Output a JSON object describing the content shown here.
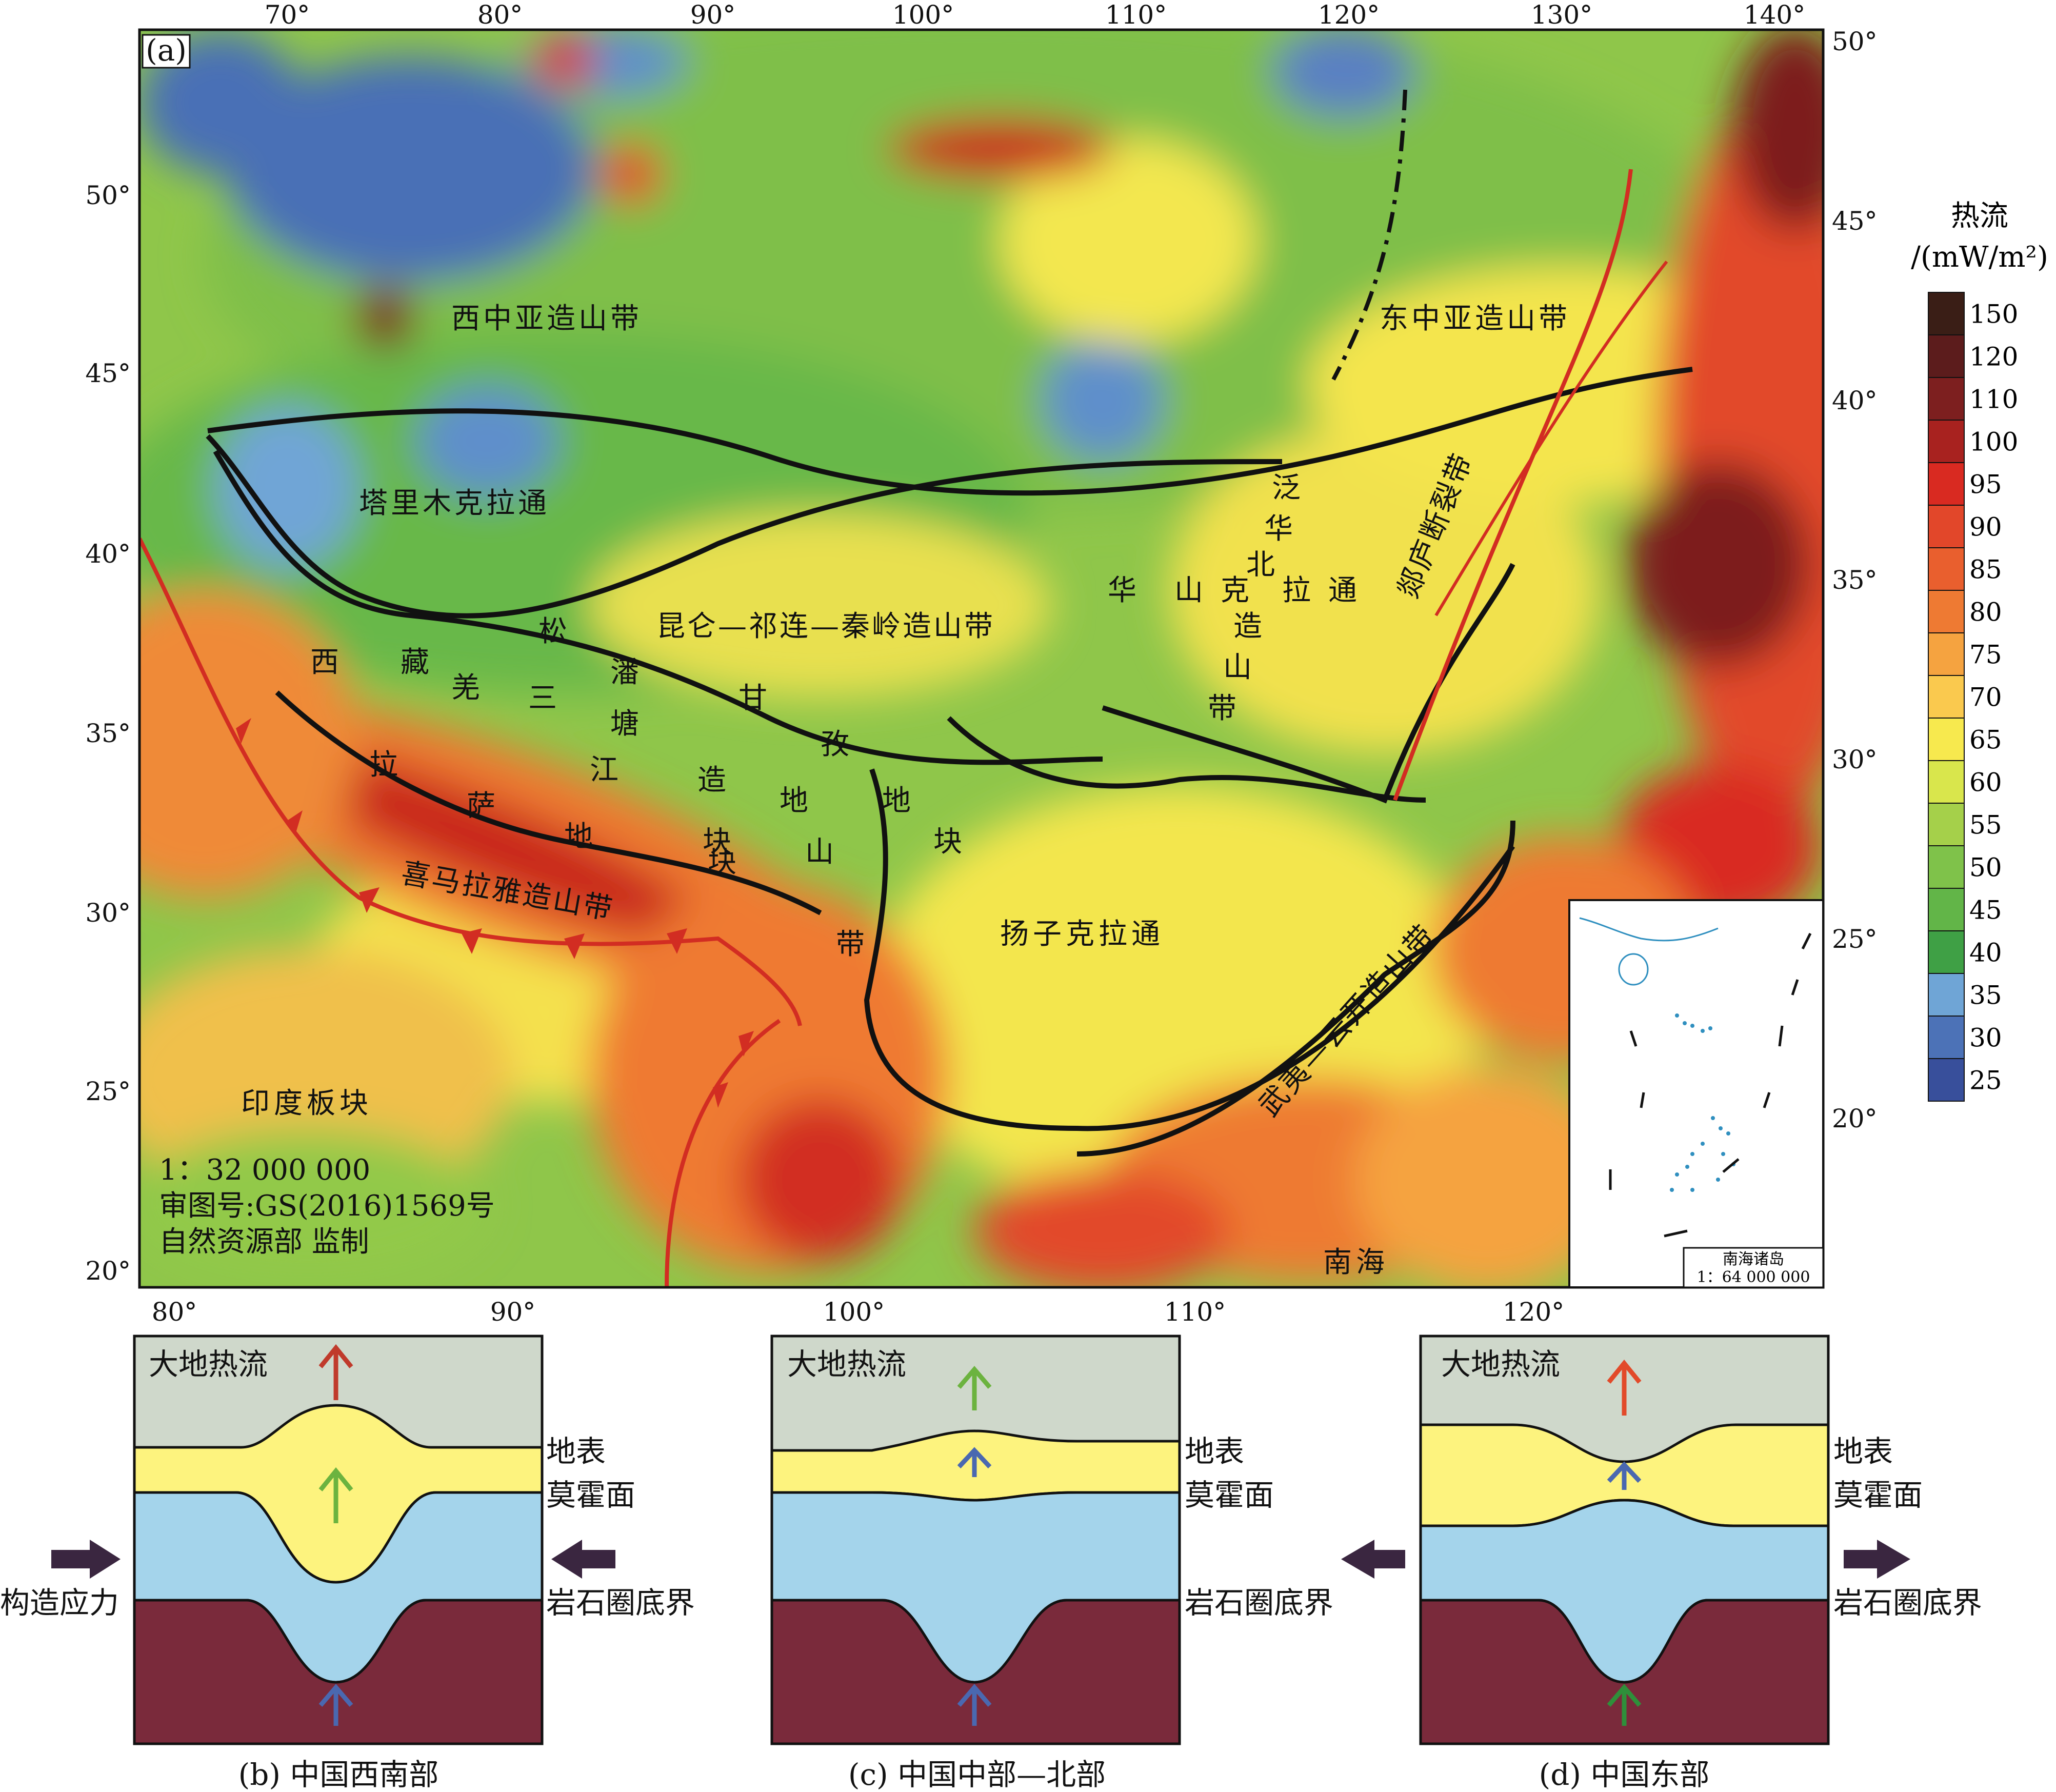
{
  "panel_a": {
    "label": "(a)",
    "top_lon_ticks": [
      "70°",
      "80°",
      "90°",
      "100°",
      "110°",
      "120°",
      "130°",
      "140°"
    ],
    "bottom_lon_ticks": [
      "80°",
      "90°",
      "100°",
      "110°",
      "120°"
    ],
    "left_lat_ticks": [
      "50°",
      "45°",
      "40°",
      "35°",
      "30°",
      "25°",
      "20°"
    ],
    "right_lat_ticks": [
      "50°",
      "45°",
      "40°",
      "35°",
      "30°",
      "25°",
      "20°"
    ],
    "regions": {
      "west_caoa": "西中亚造山带",
      "east_caoa": "东中亚造山带",
      "tarim": "塔里木克拉通",
      "kunlun": "昆仑—祁连—秦岭造山带",
      "north_china": [
        "华",
        "山",
        "克",
        "拉",
        "通"
      ],
      "north_china_orogen": [
        "泛",
        "华",
        "北",
        "造",
        "山",
        "带"
      ],
      "tanlu": "郯庐断裂带",
      "songpan": [
        "松",
        "潘",
        "甘",
        "孜",
        "地",
        "块"
      ],
      "qiangtang": [
        "羌",
        "塘",
        "地",
        "块"
      ],
      "sanjiang": [
        "三",
        "江",
        "造",
        "山",
        "带"
      ],
      "tibet_w": "西藏",
      "lhasa": [
        "拉",
        "萨",
        "地",
        "块"
      ],
      "himalaya": "喜马拉雅造山带",
      "yangtze": "扬子克拉通",
      "wuyi": "武夷—云开造山带",
      "india": "印度板块",
      "scs": "南海"
    },
    "notes": {
      "scale": "1：32 000 000",
      "approval": "审图号:GS(2016)1569号",
      "supervisor": "自然资源部 监制"
    },
    "inset": {
      "title": "南海诸岛",
      "scale": "1：64 000 000"
    },
    "legend": {
      "title": "热流",
      "unit": "/(mW/m²)",
      "values": [
        "150",
        "120",
        "110",
        "100",
        "95",
        "90",
        "85",
        "80",
        "75",
        "70",
        "65",
        "60",
        "55",
        "50",
        "45",
        "40",
        "35",
        "30",
        "25"
      ],
      "colors": [
        "#3a1e16",
        "#5c1c1c",
        "#7d1f1f",
        "#a8221f",
        "#d92a21",
        "#e2472a",
        "#e95f2e",
        "#ee7a33",
        "#f5a340",
        "#fac94e",
        "#f7e94e",
        "#d9e64c",
        "#a5d04a",
        "#7fc24a",
        "#62b548",
        "#3fa045",
        "#6fa5d6",
        "#4c72b7",
        "#384f9b"
      ]
    }
  },
  "panels": [
    {
      "labels": {
        "heat": "大地热流",
        "surface": "地表",
        "moho": "莫霍面",
        "lab": "岩石圈底界",
        "stress": "构造应力"
      },
      "caption": "(b) 中国西南部"
    },
    {
      "labels": {
        "heat": "大地热流",
        "surface": "地表",
        "moho": "莫霍面",
        "lab": "岩石圈底界"
      },
      "caption": "(c) 中国中部—北部"
    },
    {
      "labels": {
        "heat": "大地热流",
        "surface": "地表",
        "moho": "莫霍面",
        "lab": "岩石圈底界"
      },
      "caption": "(d) 中国东部"
    }
  ],
  "colors": {
    "sky": "#cfd8cb",
    "crust": "#fdf37e",
    "mantle_lith": "#a4d4eb",
    "asthenosphere": "#7a2a3b",
    "arrow_red": "#c03a2b",
    "arrow_green": "#6cb33f",
    "arrow_blue": "#4a68b0",
    "arrow_dgreen": "#2f8f3a",
    "stress_arrow": "#3a2640"
  }
}
